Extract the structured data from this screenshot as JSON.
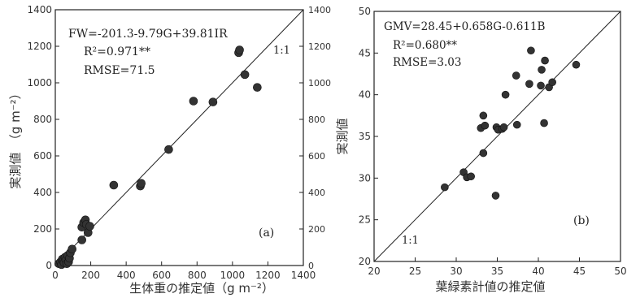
{
  "chart_data": [
    {
      "id": "a",
      "type": "scatter",
      "panel_label": "(a)",
      "xlabel": "生体重の推定値（g m⁻²）",
      "ylabel": "実測値　（g m⁻²）",
      "xlim": [
        0,
        1400
      ],
      "ylim": [
        0,
        1400
      ],
      "xticks": [
        "0",
        "200",
        "400",
        "600",
        "800",
        "1000",
        "1200",
        "1400"
      ],
      "yticks": [
        "0",
        "200",
        "400",
        "600",
        "800",
        "1000",
        "1200",
        "1400"
      ],
      "right_yticks": [
        "0",
        "200",
        "400",
        "600",
        "800",
        "1000",
        "1200",
        "1400"
      ],
      "identity_line": true,
      "identity_label": "1:1",
      "equation": "FW=-201.3-9.79G+39.81IR",
      "r2": "R²=0.971**",
      "rmse": "RMSE=71.5",
      "points": [
        {
          "x": 20,
          "y": 10
        },
        {
          "x": 30,
          "y": 20
        },
        {
          "x": 35,
          "y": 5
        },
        {
          "x": 40,
          "y": 35
        },
        {
          "x": 45,
          "y": 25
        },
        {
          "x": 50,
          "y": 15
        },
        {
          "x": 55,
          "y": 45
        },
        {
          "x": 60,
          "y": 30
        },
        {
          "x": 65,
          "y": 10
        },
        {
          "x": 70,
          "y": 55
        },
        {
          "x": 75,
          "y": 20
        },
        {
          "x": 80,
          "y": 40
        },
        {
          "x": 85,
          "y": 70
        },
        {
          "x": 95,
          "y": 90
        },
        {
          "x": 150,
          "y": 140
        },
        {
          "x": 150,
          "y": 210
        },
        {
          "x": 160,
          "y": 235
        },
        {
          "x": 170,
          "y": 250
        },
        {
          "x": 175,
          "y": 225
        },
        {
          "x": 185,
          "y": 180
        },
        {
          "x": 195,
          "y": 215
        },
        {
          "x": 330,
          "y": 440
        },
        {
          "x": 480,
          "y": 435
        },
        {
          "x": 485,
          "y": 450
        },
        {
          "x": 640,
          "y": 635
        },
        {
          "x": 780,
          "y": 900
        },
        {
          "x": 890,
          "y": 895
        },
        {
          "x": 1035,
          "y": 1165
        },
        {
          "x": 1040,
          "y": 1180
        },
        {
          "x": 1070,
          "y": 1045
        },
        {
          "x": 1140,
          "y": 975
        }
      ]
    },
    {
      "id": "b",
      "type": "scatter",
      "panel_label": "(b)",
      "xlabel": "葉緑素計値の推定値",
      "ylabel": "実測値",
      "xlim": [
        20,
        50
      ],
      "ylim": [
        20,
        50
      ],
      "xticks": [
        "20",
        "25",
        "30",
        "35",
        "40",
        "45",
        "50"
      ],
      "yticks": [
        "20",
        "25",
        "30",
        "35",
        "40",
        "45",
        "50"
      ],
      "identity_line": true,
      "identity_label": "1:1",
      "equation": "GMV=28.45+0.658G-0.611B",
      "r2": "R²=0.680**",
      "rmse": "RMSE=3.03",
      "points": [
        {
          "x": 28.6,
          "y": 28.9
        },
        {
          "x": 30.9,
          "y": 30.7
        },
        {
          "x": 31.3,
          "y": 30.1
        },
        {
          "x": 31.8,
          "y": 30.2
        },
        {
          "x": 33.0,
          "y": 36.0
        },
        {
          "x": 33.3,
          "y": 37.5
        },
        {
          "x": 33.5,
          "y": 36.3
        },
        {
          "x": 33.3,
          "y": 33.0
        },
        {
          "x": 34.8,
          "y": 27.9
        },
        {
          "x": 34.9,
          "y": 36.1
        },
        {
          "x": 35.1,
          "y": 35.8
        },
        {
          "x": 35.6,
          "y": 35.9
        },
        {
          "x": 35.8,
          "y": 36.1
        },
        {
          "x": 36.0,
          "y": 40.0
        },
        {
          "x": 37.3,
          "y": 42.3
        },
        {
          "x": 37.4,
          "y": 36.4
        },
        {
          "x": 38.9,
          "y": 41.3
        },
        {
          "x": 39.1,
          "y": 45.3
        },
        {
          "x": 40.3,
          "y": 41.1
        },
        {
          "x": 40.4,
          "y": 43.0
        },
        {
          "x": 40.8,
          "y": 44.1
        },
        {
          "x": 40.7,
          "y": 36.6
        },
        {
          "x": 41.3,
          "y": 40.9
        },
        {
          "x": 41.7,
          "y": 41.5
        },
        {
          "x": 44.6,
          "y": 43.6
        }
      ]
    }
  ]
}
